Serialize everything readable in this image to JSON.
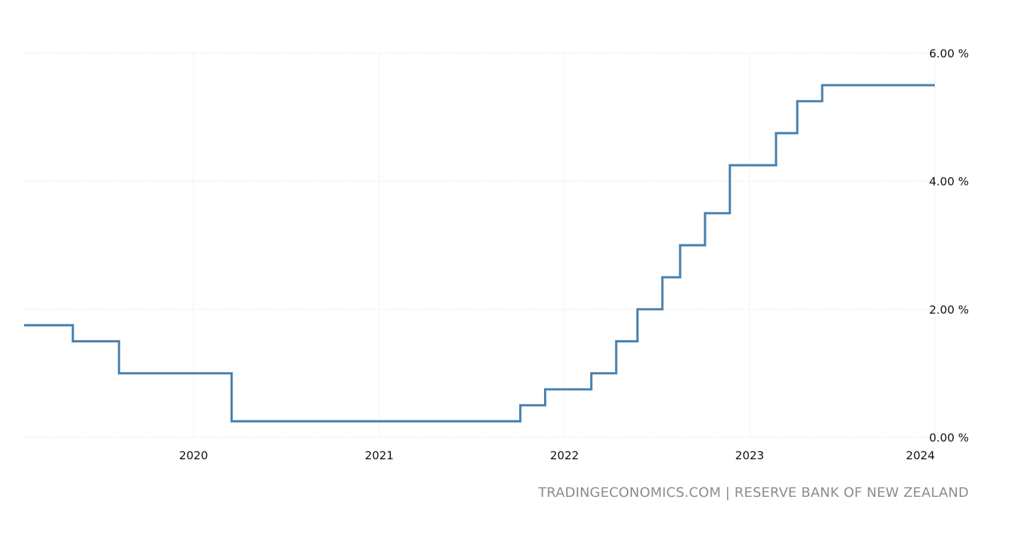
{
  "source_text": "TRADINGECONOMICS.COM | RESERVE BANK OF NEW ZEALAND",
  "colors": {
    "series": "#4a81ad",
    "grid": "#d9d9d9",
    "source": "#8c8c8c"
  },
  "chart_data": {
    "type": "line",
    "step": true,
    "title": "",
    "xlabel": "",
    "ylabel": "",
    "xlim": [
      "2019-02-01",
      "2024-01-01"
    ],
    "ylim": [
      0,
      6
    ],
    "x_ticks": [
      "2020",
      "2021",
      "2022",
      "2023",
      "2024"
    ],
    "y_ticks": [
      "0.00 %",
      "2.00 %",
      "4.00 %",
      "6.00 %"
    ],
    "grid": true,
    "legend": "none",
    "series": [
      {
        "x": [
          "2019-02-01",
          "2019-05-08",
          "2019-08-07",
          "2020-03-16",
          "2021-10-06",
          "2021-11-24",
          "2022-02-23",
          "2022-04-13",
          "2022-05-25",
          "2022-07-13",
          "2022-08-17",
          "2022-10-05",
          "2022-11-23",
          "2023-02-22",
          "2023-04-05",
          "2023-05-24",
          "2024-01-01"
        ],
        "y": [
          1.75,
          1.5,
          1.0,
          0.25,
          0.5,
          0.75,
          1.0,
          1.5,
          2.0,
          2.5,
          3.0,
          3.5,
          4.25,
          4.75,
          5.25,
          5.5,
          5.5
        ]
      }
    ]
  }
}
